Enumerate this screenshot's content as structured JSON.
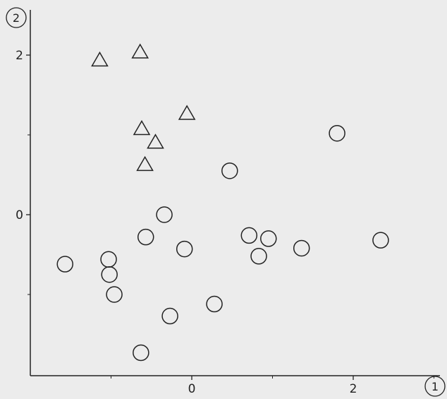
{
  "chart_data": {
    "type": "scatter",
    "title": "",
    "xlabel": "1",
    "ylabel": "2",
    "xlim": [
      -2.1,
      3.2
    ],
    "ylim": [
      -2.0,
      2.35
    ],
    "x_ticks": [
      0,
      2
    ],
    "y_ticks": [
      0,
      2
    ],
    "x_minor_ticks": [
      -2,
      -1,
      1,
      3
    ],
    "y_minor_ticks": [
      -1,
      1
    ],
    "grid": false,
    "series": [
      {
        "marker": "triangle",
        "points": [
          [
            -1.14,
            1.94
          ],
          [
            -0.64,
            2.04
          ],
          [
            -0.62,
            1.08
          ],
          [
            -0.45,
            0.91
          ],
          [
            -0.58,
            0.63
          ],
          [
            -0.06,
            1.27
          ]
        ]
      },
      {
        "marker": "circle",
        "points": [
          [
            -1.57,
            -0.62
          ],
          [
            -1.03,
            -0.56
          ],
          [
            -1.02,
            -0.75
          ],
          [
            -0.96,
            -1.0
          ],
          [
            -0.57,
            -0.28
          ],
          [
            -0.34,
            0.0
          ],
          [
            -0.27,
            -1.27
          ],
          [
            -0.63,
            -1.73
          ],
          [
            -0.09,
            -0.43
          ],
          [
            0.28,
            -1.12
          ],
          [
            0.47,
            0.55
          ],
          [
            0.71,
            -0.26
          ],
          [
            0.83,
            -0.52
          ],
          [
            0.95,
            -0.3
          ],
          [
            1.36,
            -0.42
          ],
          [
            1.8,
            1.02
          ],
          [
            2.34,
            -0.32
          ]
        ]
      }
    ]
  }
}
